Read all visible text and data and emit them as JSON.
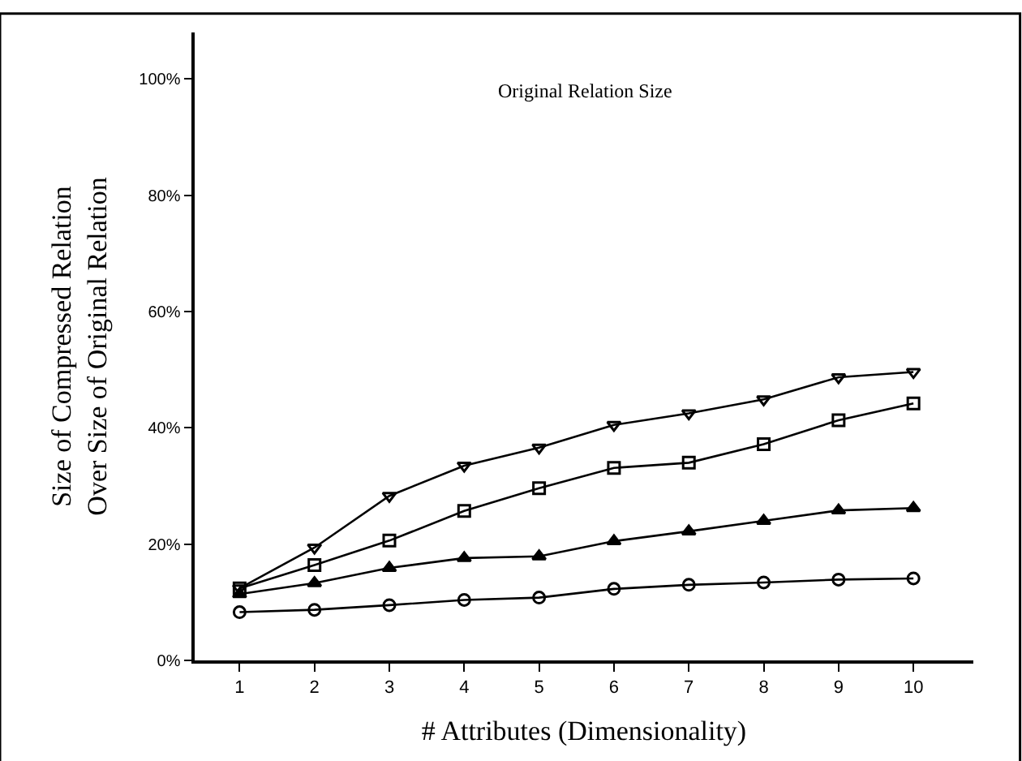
{
  "chart_data": {
    "type": "line",
    "xlabel": "# Attributes (Dimensionality)",
    "ylabel": "Size of Compressed Relation\nOver Size of Original Relation",
    "annotations": [
      "Original Relation Size"
    ],
    "x": [
      1,
      2,
      3,
      4,
      5,
      6,
      7,
      8,
      9,
      10
    ],
    "xlim": [
      0.4,
      10.8
    ],
    "xticks": [
      1,
      2,
      3,
      4,
      5,
      6,
      7,
      8,
      9,
      10
    ],
    "ylim": [
      0,
      108
    ],
    "yticks": [
      {
        "value": 0,
        "label": "0%"
      },
      {
        "value": 20,
        "label": "20%"
      },
      {
        "value": 40,
        "label": "40%"
      },
      {
        "value": 60,
        "label": "60%"
      },
      {
        "value": 80,
        "label": "80%"
      },
      {
        "value": 100,
        "label": "100%"
      }
    ],
    "line_style": "solid",
    "series": [
      {
        "color": "#000000",
        "marker": "triangle-down",
        "values": [
          12.4,
          19.4,
          28.3,
          33.5,
          36.6,
          40.5,
          42.5,
          44.9,
          48.7,
          49.6
        ]
      },
      {
        "color": "#000000",
        "marker": "square",
        "values": [
          12.4,
          16.4,
          20.6,
          25.7,
          29.6,
          33.1,
          34.0,
          37.2,
          41.3,
          44.2
        ]
      },
      {
        "color": "#000000",
        "marker": "triangle",
        "values": [
          11.4,
          13.3,
          15.9,
          17.6,
          17.9,
          20.5,
          22.2,
          24.0,
          25.8,
          26.2
        ]
      },
      {
        "color": "#000000",
        "marker": "circle",
        "values": [
          8.3,
          8.7,
          9.5,
          10.4,
          10.8,
          12.3,
          13.0,
          13.4,
          13.9,
          14.1
        ]
      }
    ]
  }
}
